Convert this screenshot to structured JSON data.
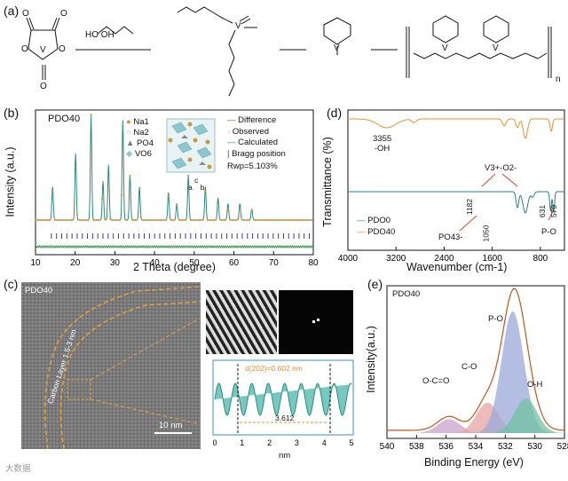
{
  "panels": {
    "a": {
      "label": "(a)"
    },
    "b": {
      "label": "(b)"
    },
    "c": {
      "label": "(c)"
    },
    "d": {
      "label": "(d)"
    },
    "e": {
      "label": "(e)"
    }
  },
  "scheme_a": {
    "atoms": {
      "v": "V",
      "o": "O"
    },
    "reagent_diol": "HO OH",
    "steps": 3,
    "subscript_n": "n"
  },
  "chart_b": {
    "sample": "PDO40",
    "ylabel": "Intensity (a.u.)",
    "xlabel": "2 Theta (degree)",
    "xticks": [
      "10",
      "20",
      "30",
      "40",
      "50",
      "60",
      "70",
      "80"
    ],
    "xlim": [
      10,
      80
    ],
    "legend_right": [
      "Difference",
      "Observed",
      "Calculated",
      "Bragg position"
    ],
    "legend_left": [
      "Na1",
      "Na2",
      "PO4",
      "VO6"
    ],
    "rwp_label": "Rwp=5.103%",
    "lattice_axes": [
      "c",
      "a",
      "b"
    ],
    "colors": {
      "observed": "#e8902f",
      "calculated": "#2a8c7c",
      "difference": "#2a8c3a",
      "bragg": "#3b3b9c"
    }
  },
  "chart_d": {
    "ylabel": "Transmittance (%)",
    "xlabel": "Wavenumber (cm-1)",
    "xticks": [
      "4000",
      "3200",
      "2400",
      "1600",
      "800"
    ],
    "xlim": [
      4000,
      400
    ],
    "series": [
      {
        "name": "PDO0",
        "color": "#2f7f7f"
      },
      {
        "name": "PDO40",
        "color": "#e8902f"
      }
    ],
    "annotations": {
      "oh": "3355",
      "oh_label": "-OH",
      "v_o": "V3+-O2-",
      "po4": "PO43-",
      "p_o": "P-O",
      "peaks": [
        "1182",
        "1050",
        "631",
        "579"
      ]
    }
  },
  "panel_c": {
    "sample": "PDO40",
    "carbon_layer": "Carbon Layer",
    "thickness": "1.5-3 nm",
    "scale_bar": "10 nm",
    "d_spacing": "d(202)=0.602 nm",
    "span": "3.612",
    "profile_xlabel": "nm",
    "profile_xticks": [
      "0",
      "1",
      "2",
      "3",
      "4",
      "5"
    ]
  },
  "chart_e": {
    "sample": "PDO40",
    "ylabel": "Intensity(a.u.)",
    "xlabel": "Binding Energy (eV)",
    "xticks": [
      "540",
      "538",
      "536",
      "534",
      "532",
      "530",
      "528"
    ],
    "xlim": [
      540,
      528
    ],
    "peaks": [
      {
        "name": "O-C=O",
        "center": 535.8,
        "height": 0.1,
        "color": "#c9a3c9"
      },
      {
        "name": "C-O",
        "center": 533.2,
        "height": 0.22,
        "color": "#e8a6a0"
      },
      {
        "name": "P-O",
        "center": 531.5,
        "height": 0.88,
        "color": "#9aa8d8"
      },
      {
        "name": "O-H",
        "center": 530.6,
        "height": 0.25,
        "color": "#6fc2a0"
      }
    ]
  },
  "watermark": "大数据"
}
